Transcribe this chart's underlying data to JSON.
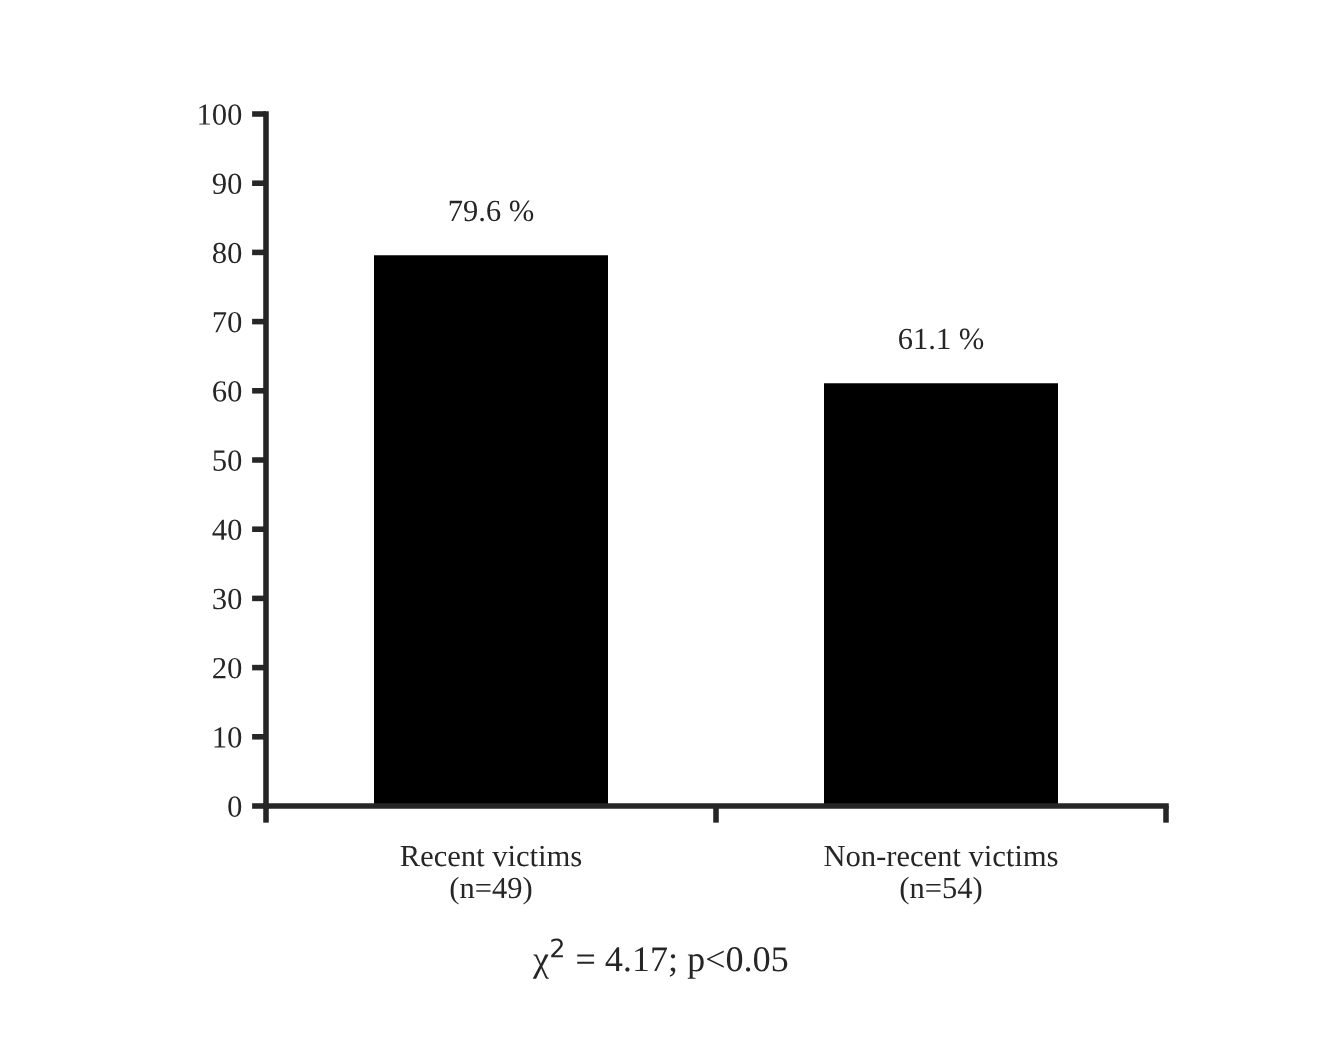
{
  "chart_data": {
    "type": "bar",
    "categories": [
      "Recent victims\n(n=49)",
      "Non-recent victims\n(n=54)"
    ],
    "values": [
      79.6,
      61.1
    ],
    "value_labels": [
      "79.6 %",
      "61.1 %"
    ],
    "color": "#000000",
    "ylim": [
      0,
      100
    ],
    "yticks": [
      0,
      10,
      20,
      30,
      40,
      50,
      60,
      70,
      80,
      90,
      100
    ],
    "grid": false,
    "annotations": [
      "χ$^{2}$ = 4.17; p<0.05"
    ]
  }
}
